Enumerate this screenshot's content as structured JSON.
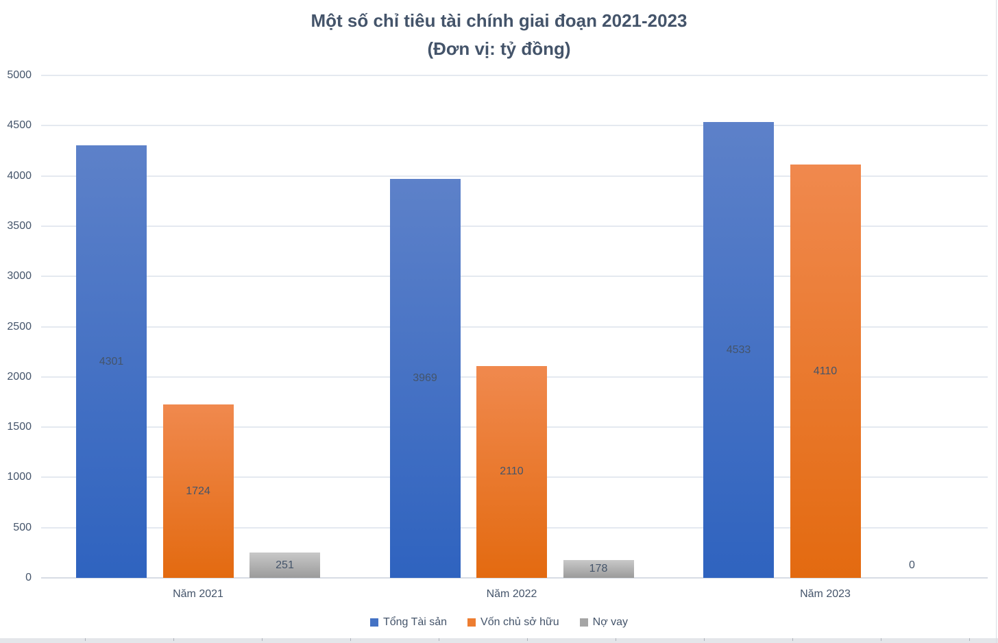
{
  "chart_data": {
    "type": "bar",
    "title": "Một số chỉ tiêu tài chính giai đoạn 2021-2023",
    "subtitle": "(Đơn vị: tỷ đồng)",
    "categories": [
      "Năm 2021",
      "Năm 2022",
      "Năm 2023"
    ],
    "series": [
      {
        "name": "Tổng Tài sản",
        "values": [
          4301,
          3969,
          4533
        ],
        "legend_color": "#4472C4",
        "gradient_top": "#5D81C9",
        "gradient_bottom": "#2F63BF"
      },
      {
        "name": "Vốn chủ sở hữu",
        "values": [
          1724,
          2110,
          4110
        ],
        "legend_color": "#ED7D31",
        "gradient_top": "#F0894E",
        "gradient_bottom": "#E36A10"
      },
      {
        "name": "Nợ vay",
        "values": [
          251,
          178,
          0
        ],
        "legend_color": "#A5A5A5",
        "gradient_top": "#C8C8C8",
        "gradient_bottom": "#9B9B9B"
      }
    ],
    "ylim": [
      0,
      5000
    ],
    "ytick_step": 500,
    "grid": true,
    "legend_position": "bottom",
    "data_labels": true,
    "colors": {
      "title": "#44546A",
      "axis_text": "#44546A",
      "data_label": "#44546A",
      "gridline": "#E4E9F0",
      "axis_line": "#D7DCE4"
    }
  }
}
